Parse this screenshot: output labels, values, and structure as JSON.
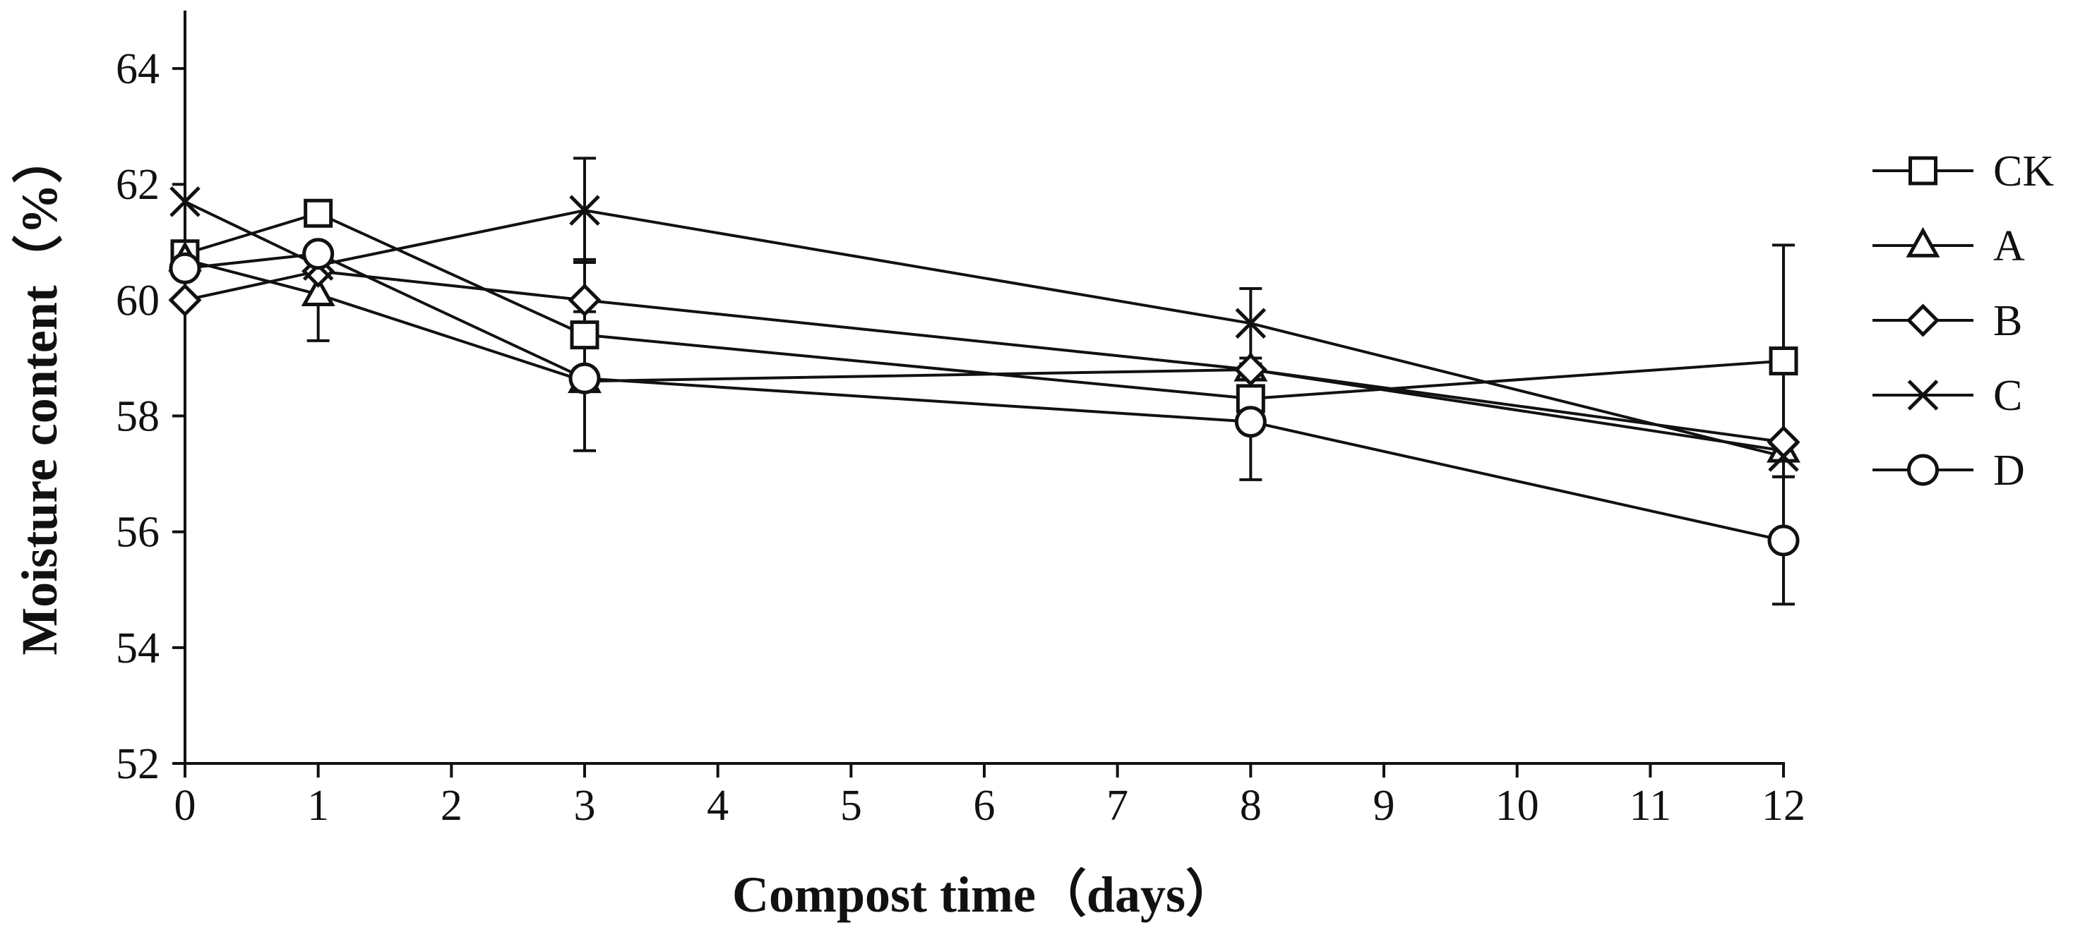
{
  "chart_data": {
    "type": "line",
    "title": "",
    "xlabel": "Compost time（days）",
    "ylabel": "Moisture content（%）",
    "xlim": [
      0,
      12
    ],
    "ylim": [
      52,
      65
    ],
    "x_ticks": [
      0,
      1,
      2,
      3,
      4,
      5,
      6,
      7,
      8,
      9,
      10,
      11,
      12
    ],
    "y_ticks": [
      52,
      54,
      56,
      58,
      60,
      62,
      64
    ],
    "grid": false,
    "legend_position": "right",
    "x": [
      0,
      1,
      3,
      8,
      12
    ],
    "series": [
      {
        "name": "CK",
        "marker": "square",
        "values": [
          60.8,
          61.5,
          59.4,
          58.3,
          58.95
        ],
        "error": [
          0,
          0,
          0,
          0,
          2.0
        ]
      },
      {
        "name": "A",
        "marker": "triangle",
        "values": [
          60.7,
          60.1,
          58.6,
          58.8,
          57.4
        ],
        "error": [
          0,
          0.8,
          1.2,
          0,
          0
        ]
      },
      {
        "name": "B",
        "marker": "diamond",
        "values": [
          60.0,
          60.5,
          60.0,
          58.8,
          57.55
        ],
        "error": [
          0,
          0,
          0.7,
          0,
          0
        ]
      },
      {
        "name": "C",
        "marker": "x",
        "values": [
          61.7,
          60.6,
          61.55,
          59.6,
          57.3
        ],
        "error": [
          0,
          0,
          0.9,
          0.6,
          0
        ]
      },
      {
        "name": "D",
        "marker": "circle",
        "values": [
          60.55,
          60.8,
          58.65,
          57.9,
          55.85
        ],
        "error": [
          0,
          0,
          0,
          1.0,
          1.1
        ]
      }
    ]
  }
}
